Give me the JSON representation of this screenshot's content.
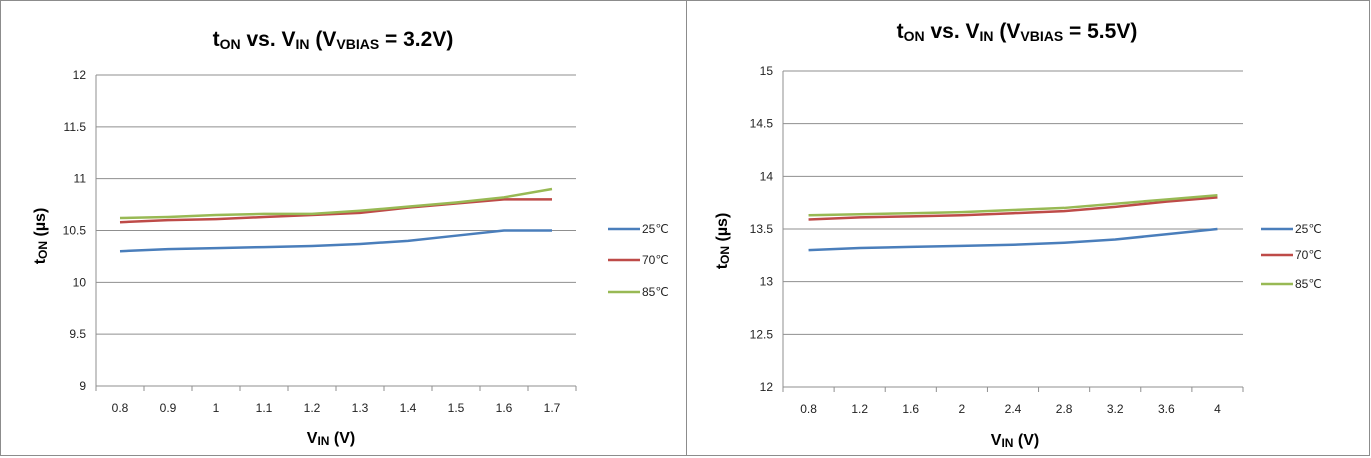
{
  "chart_data": [
    {
      "type": "line",
      "title": {
        "t": "t",
        "t_sub": "ON",
        "vs": " vs. V",
        "vs_sub": "IN",
        "paren": " (V",
        "paren_sub": "VBIAS",
        "end": " = 3.2V)"
      },
      "xlabel": {
        "main": "V",
        "sub": "IN",
        "unit": " (V)"
      },
      "ylabel": {
        "main": "t",
        "sub": "ON",
        "unit": " (µs)"
      },
      "categories": [
        "0.8",
        "0.9",
        "1",
        "1.1",
        "1.2",
        "1.3",
        "1.4",
        "1.5",
        "1.6",
        "1.7"
      ],
      "yticks": [
        "9",
        "9.5",
        "10",
        "10.5",
        "11",
        "11.5",
        "12"
      ],
      "ylim": [
        9,
        12
      ],
      "grid": true,
      "legend_position": "right",
      "series": [
        {
          "name": "25℃",
          "color": "#4a7ebb",
          "values": [
            10.3,
            10.32,
            10.33,
            10.34,
            10.35,
            10.37,
            10.4,
            10.45,
            10.5,
            10.5
          ]
        },
        {
          "name": "70℃",
          "color": "#be4b48",
          "values": [
            10.58,
            10.6,
            10.61,
            10.63,
            10.65,
            10.67,
            10.72,
            10.76,
            10.8,
            10.8
          ]
        },
        {
          "name": "85℃",
          "color": "#98b954",
          "values": [
            10.62,
            10.63,
            10.65,
            10.66,
            10.66,
            10.69,
            10.73,
            10.77,
            10.82,
            10.9
          ]
        }
      ]
    },
    {
      "type": "line",
      "title": {
        "t": "t",
        "t_sub": "ON",
        "vs": " vs. V",
        "vs_sub": "IN",
        "paren": " (V",
        "paren_sub": "VBIAS",
        "end": " = 5.5V)"
      },
      "xlabel": {
        "main": "V",
        "sub": "IN",
        "unit": " (V)"
      },
      "ylabel": {
        "main": "t",
        "sub": "ON",
        "unit": " (µs)"
      },
      "categories": [
        "0.8",
        "1.2",
        "1.6",
        "2",
        "2.4",
        "2.8",
        "3.2",
        "3.6",
        "4"
      ],
      "yticks": [
        "12",
        "12.5",
        "13",
        "13.5",
        "14",
        "14.5",
        "15"
      ],
      "ylim": [
        12,
        15
      ],
      "grid": true,
      "legend_position": "right",
      "series": [
        {
          "name": "25℃",
          "color": "#4a7ebb",
          "values": [
            13.3,
            13.32,
            13.33,
            13.34,
            13.35,
            13.37,
            13.4,
            13.45,
            13.5
          ]
        },
        {
          "name": "70℃",
          "color": "#be4b48",
          "values": [
            13.59,
            13.61,
            13.62,
            13.63,
            13.65,
            13.67,
            13.71,
            13.76,
            13.8
          ]
        },
        {
          "name": "85℃",
          "color": "#98b954",
          "values": [
            13.63,
            13.64,
            13.65,
            13.66,
            13.68,
            13.7,
            13.74,
            13.78,
            13.82
          ]
        }
      ]
    }
  ]
}
